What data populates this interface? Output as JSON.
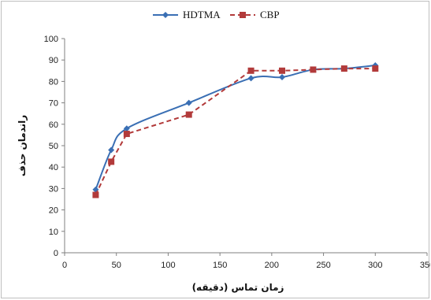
{
  "chart_data": {
    "type": "line",
    "title": "",
    "xlabel": "زمان تماس (دقیقه)",
    "ylabel": "راندمان حذف",
    "xlim": [
      0,
      350
    ],
    "ylim": [
      0,
      100
    ],
    "x_ticks": [
      0,
      50,
      100,
      150,
      200,
      250,
      300,
      350
    ],
    "y_ticks": [
      0,
      10,
      20,
      30,
      40,
      50,
      60,
      70,
      80,
      90,
      100
    ],
    "grid": false,
    "legend_position": "top-center",
    "series": [
      {
        "name": "HDTMA",
        "color": "#3a6fb4",
        "line_style": "solid",
        "marker": "diamond",
        "smooth": true,
        "x": [
          30,
          45,
          60,
          120,
          180,
          210,
          240,
          270,
          300
        ],
        "y": [
          29.5,
          48,
          58,
          70,
          81.5,
          82,
          85.5,
          86,
          87.5
        ]
      },
      {
        "name": "CBP",
        "color": "#b23a3a",
        "line_style": "dashed",
        "marker": "square",
        "smooth": false,
        "x": [
          30,
          45,
          60,
          120,
          180,
          210,
          240,
          270,
          300
        ],
        "y": [
          27,
          42.5,
          55.5,
          64.5,
          85,
          85,
          85.5,
          86,
          86
        ]
      }
    ]
  }
}
